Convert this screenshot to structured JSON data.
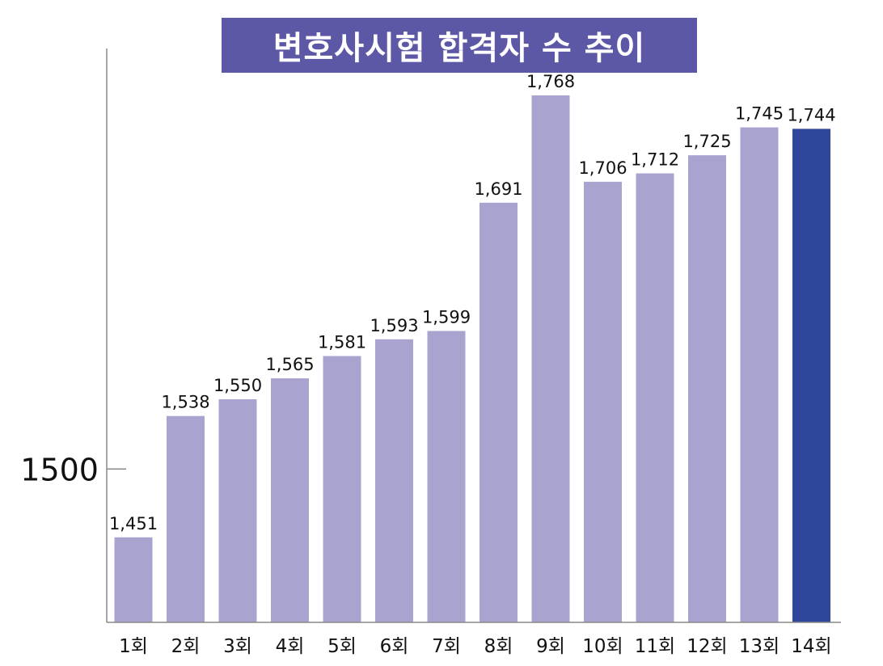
{
  "chart_data": {
    "type": "bar",
    "title": "변호사시험 합격자 수 추이",
    "xlabel": "",
    "ylabel": "",
    "categories": [
      "1회",
      "2회",
      "3회",
      "4회",
      "5회",
      "6회",
      "7회",
      "8회",
      "9회",
      "10회",
      "11회",
      "12회",
      "13회",
      "14회"
    ],
    "values": [
      1451,
      1538,
      1550,
      1565,
      1581,
      1593,
      1599,
      1691,
      1768,
      1706,
      1712,
      1725,
      1745,
      1744
    ],
    "value_labels": [
      "1,451",
      "1,538",
      "1,550",
      "1,565",
      "1,581",
      "1,593",
      "1,599",
      "1,691",
      "1,768",
      "1,706",
      "1,712",
      "1,725",
      "1,745",
      "1,744"
    ],
    "ylim": [
      1390,
      1790
    ],
    "yticks": [
      1500
    ],
    "ytick_labels": [
      "1500"
    ],
    "grid": false,
    "highlight_index": 13
  },
  "colors": {
    "bar": "#a8a4cf",
    "bar_highlight": "#2e479a",
    "title_bg": "#5d58a6",
    "title_text": "#ffffff",
    "axis": "#888888",
    "label_text": "#111111"
  }
}
